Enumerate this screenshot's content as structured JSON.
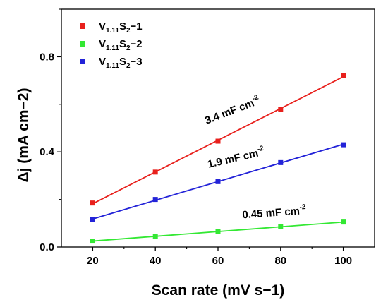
{
  "chart_data": {
    "type": "scatter",
    "xlabel": "Scan rate (mV s−1)",
    "ylabel": "Δj (mA cm−2)",
    "xlim": [
      10,
      110
    ],
    "ylim": [
      0,
      1.0
    ],
    "xticks": [
      20,
      40,
      60,
      80,
      100
    ],
    "xtick_labels": [
      "20",
      "40",
      "60",
      "80",
      "100"
    ],
    "yticks": [
      0.0,
      0.4,
      0.8
    ],
    "ytick_labels": [
      "0.0",
      "0.4",
      "0.8"
    ],
    "grid": false,
    "legend_position": "top-left",
    "series": [
      {
        "name": "V1.11S2−1",
        "legend": {
          "base": "V",
          "sub1": "1.11",
          "mid": "S",
          "sub2": "2",
          "suffix": "−1"
        },
        "color": "#e8201c",
        "x": [
          20,
          40,
          60,
          80,
          100
        ],
        "y": [
          0.185,
          0.315,
          0.445,
          0.58,
          0.72
        ],
        "fit": true
      },
      {
        "name": "V1.11S2−2",
        "legend": {
          "base": "V",
          "sub1": "1.11",
          "mid": "S",
          "sub2": "2",
          "suffix": "−2"
        },
        "color": "#33e833",
        "x": [
          20,
          40,
          60,
          80,
          100
        ],
        "y": [
          0.025,
          0.045,
          0.065,
          0.085,
          0.105
        ],
        "fit": true
      },
      {
        "name": "V1.11S2−3",
        "legend": {
          "base": "V",
          "sub1": "1.11",
          "mid": "S",
          "sub2": "2",
          "suffix": "−3"
        },
        "color": "#2323d8",
        "x": [
          20,
          40,
          60,
          80,
          100
        ],
        "y": [
          0.115,
          0.2,
          0.275,
          0.355,
          0.43
        ],
        "fit": true
      }
    ],
    "annotations": [
      {
        "text": "3.4 mF cm",
        "sup": "-2",
        "x": 65,
        "y": 0.56,
        "angle": -21
      },
      {
        "text": "1.9 mF cm",
        "sup": "-2",
        "x": 66,
        "y": 0.36,
        "angle": -13
      },
      {
        "text": "0.45 mF cm",
        "sup": "-2",
        "x": 78,
        "y": 0.13,
        "angle": -4
      }
    ]
  }
}
